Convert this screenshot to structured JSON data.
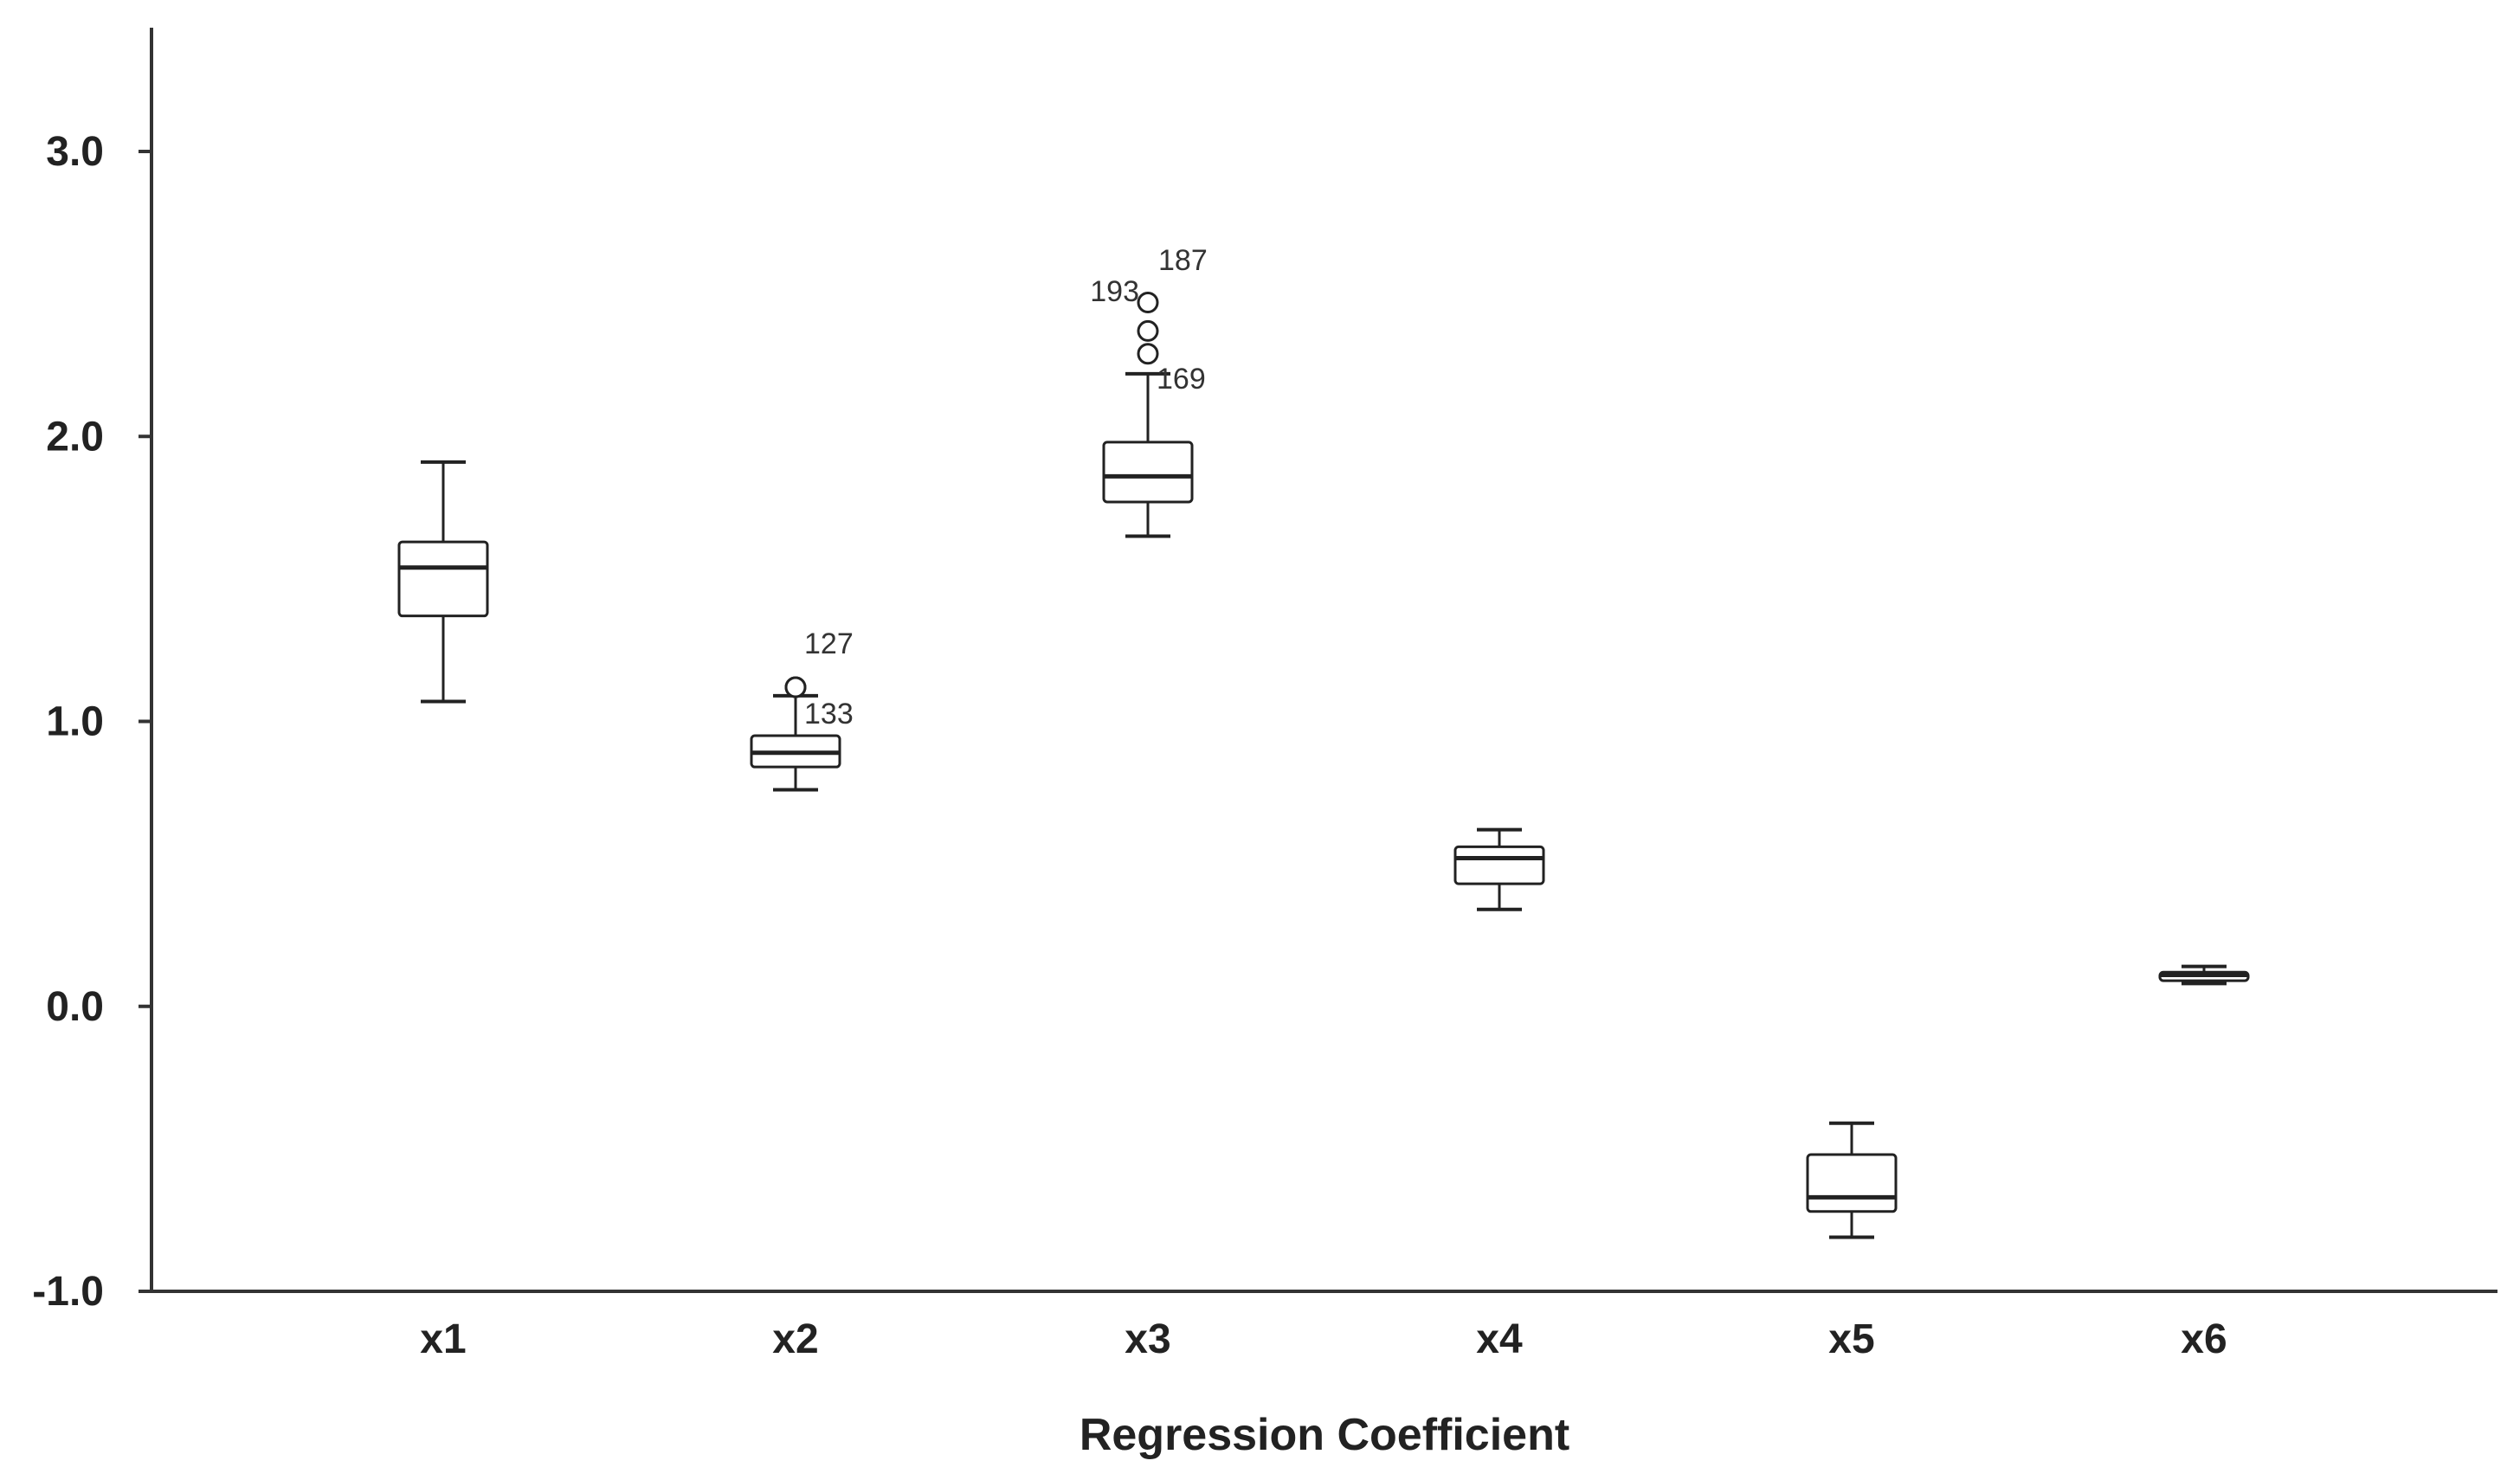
{
  "chart_data": {
    "type": "boxplot",
    "title": "",
    "xlabel": "Regression Coefficient",
    "ylabel": "",
    "ylim": [
      -1.0,
      3.4
    ],
    "yticks": [
      -1.0,
      0.0,
      1.0,
      2.0,
      3.0
    ],
    "ytick_labels": [
      "-1.0",
      "0.0",
      "1.0",
      "2.0",
      "3.0"
    ],
    "grid": false,
    "categories": [
      "x1",
      "x2",
      "x3",
      "x4",
      "x5",
      "x6"
    ],
    "boxes": [
      {
        "category": "x1",
        "whisker_low": 1.07,
        "q1": 1.37,
        "median": 1.54,
        "q3": 1.63,
        "whisker_high": 1.91,
        "outliers": []
      },
      {
        "category": "x2",
        "whisker_low": 0.76,
        "q1": 0.84,
        "median": 0.89,
        "q3": 0.95,
        "whisker_high": 1.09,
        "outliers": [
          {
            "value": 1.12,
            "label": "127"
          },
          {
            "value": 1.12,
            "label": "133"
          }
        ]
      },
      {
        "category": "x3",
        "whisker_low": 1.65,
        "q1": 1.77,
        "median": 1.86,
        "q3": 1.98,
        "whisker_high": 2.22,
        "outliers": [
          {
            "value": 2.47,
            "label": "187"
          },
          {
            "value": 2.37,
            "label": "193"
          },
          {
            "value": 2.29,
            "label": "169"
          }
        ]
      },
      {
        "category": "x4",
        "whisker_low": 0.34,
        "q1": 0.43,
        "median": 0.52,
        "q3": 0.56,
        "whisker_high": 0.62,
        "outliers": []
      },
      {
        "category": "x5",
        "whisker_low": -0.81,
        "q1": -0.72,
        "median": -0.67,
        "q3": -0.52,
        "whisker_high": -0.41,
        "outliers": []
      },
      {
        "category": "x6",
        "whisker_low": 0.08,
        "q1": 0.09,
        "median": 0.11,
        "q3": 0.12,
        "whisker_high": 0.14,
        "outliers": []
      }
    ],
    "colors": {
      "box_fill": "#ffffff",
      "line": "#222222",
      "axis": "#333333"
    }
  }
}
